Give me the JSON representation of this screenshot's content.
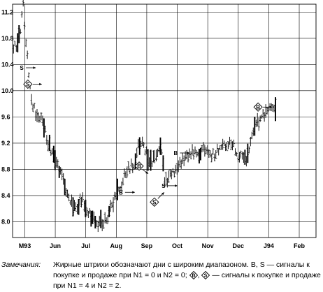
{
  "chart_data": {
    "type": "bar",
    "subtype": "ohlc-price-bars",
    "title": "",
    "xlabel": "",
    "ylabel": "",
    "ylim": [
      7.76,
      11.32
    ],
    "y_ticks": [
      {
        "value": 8.0,
        "label": "8.0"
      },
      {
        "value": 8.4,
        "label": "8.4"
      },
      {
        "value": 8.8,
        "label": "8.8"
      },
      {
        "value": 9.2,
        "label": "9.2"
      },
      {
        "value": 9.6,
        "label": "9.6"
      },
      {
        "value": 10.0,
        "label": "10.0"
      },
      {
        "value": 10.4,
        "label": "10.4"
      },
      {
        "value": 10.8,
        "label": "10.8"
      },
      {
        "value": 11.2,
        "label": "11.2"
      }
    ],
    "y_tick_labels_shown": [
      "8.0",
      "8.4",
      "8.8",
      "9.2",
      "9.6",
      "10.0",
      "10.4",
      "10.8",
      "11.2"
    ],
    "x_months": [
      "M93",
      "Jun",
      "Jul",
      "Aug",
      "Sep",
      "Oct",
      "Nov",
      "Dec",
      "J94",
      "Feb"
    ],
    "x_range_months": [
      4.6,
      14.55
    ],
    "grid": true,
    "anchors": [
      {
        "t": 4.6,
        "p": 10.6
      },
      {
        "t": 4.72,
        "p": 10.7
      },
      {
        "t": 4.85,
        "p": 10.9
      },
      {
        "t": 4.95,
        "p": 11.3
      },
      {
        "t": 5.05,
        "p": 10.7
      },
      {
        "t": 5.12,
        "p": 10.3
      },
      {
        "t": 5.25,
        "p": 9.8
      },
      {
        "t": 5.4,
        "p": 9.6
      },
      {
        "t": 5.55,
        "p": 9.65
      },
      {
        "t": 5.75,
        "p": 9.2
      },
      {
        "t": 6.0,
        "p": 8.95
      },
      {
        "t": 6.35,
        "p": 8.5
      },
      {
        "t": 6.6,
        "p": 8.2
      },
      {
        "t": 6.9,
        "p": 8.3
      },
      {
        "t": 7.15,
        "p": 8.1
      },
      {
        "t": 7.5,
        "p": 7.95
      },
      {
        "t": 7.7,
        "p": 8.05
      },
      {
        "t": 8.0,
        "p": 8.4
      },
      {
        "t": 8.3,
        "p": 8.75
      },
      {
        "t": 8.6,
        "p": 8.9
      },
      {
        "t": 8.7,
        "p": 9.15
      },
      {
        "t": 8.9,
        "p": 9.2
      },
      {
        "t": 9.1,
        "p": 8.9
      },
      {
        "t": 9.3,
        "p": 9.0
      },
      {
        "t": 9.45,
        "p": 9.2
      },
      {
        "t": 9.6,
        "p": 8.6
      },
      {
        "t": 9.8,
        "p": 8.7
      },
      {
        "t": 10.1,
        "p": 8.9
      },
      {
        "t": 10.5,
        "p": 9.05
      },
      {
        "t": 10.8,
        "p": 9.1
      },
      {
        "t": 11.1,
        "p": 9.0
      },
      {
        "t": 11.5,
        "p": 9.15
      },
      {
        "t": 11.8,
        "p": 9.2
      },
      {
        "t": 12.0,
        "p": 9.0
      },
      {
        "t": 12.3,
        "p": 8.95
      },
      {
        "t": 12.5,
        "p": 9.4
      },
      {
        "t": 12.8,
        "p": 9.6
      },
      {
        "t": 13.0,
        "p": 9.75
      },
      {
        "t": 13.2,
        "p": 9.7
      }
    ],
    "signals": [
      {
        "kind": "S",
        "style": "plain",
        "t": 4.9,
        "p": 10.35,
        "arrow": "right"
      },
      {
        "kind": "S",
        "style": "diamond",
        "t": 5.1,
        "p": 10.1,
        "arrow": "right"
      },
      {
        "kind": "B",
        "style": "diamond",
        "t": 8.75,
        "p": 8.85,
        "arrow": "down-right"
      },
      {
        "kind": "B",
        "style": "plain",
        "t": 8.15,
        "p": 8.45,
        "arrow": "right"
      },
      {
        "kind": "B",
        "style": "plain",
        "t": 9.95,
        "p": 9.05,
        "arrow": "right"
      },
      {
        "kind": "S",
        "style": "plain",
        "t": 9.55,
        "p": 8.55,
        "arrow": "right"
      },
      {
        "kind": "S",
        "style": "diamond",
        "t": 9.25,
        "p": 8.3,
        "arrow": "up-right"
      },
      {
        "kind": "B",
        "style": "diamond",
        "t": 12.65,
        "p": 9.75,
        "arrow": "right"
      }
    ]
  },
  "note": {
    "label": "Замечания:",
    "text_part1": "Жирные штрихи обозначают дни с широким диапазоном. B, S — сигналы к покупке и продаже при N1 = 0 и N2 = 0;",
    "text_sep": ",",
    "text_part2": "— сигналы к покупке и продаже при N1 = 4 и N2 = 2.",
    "diamond_b": "B",
    "diamond_s": "S"
  }
}
